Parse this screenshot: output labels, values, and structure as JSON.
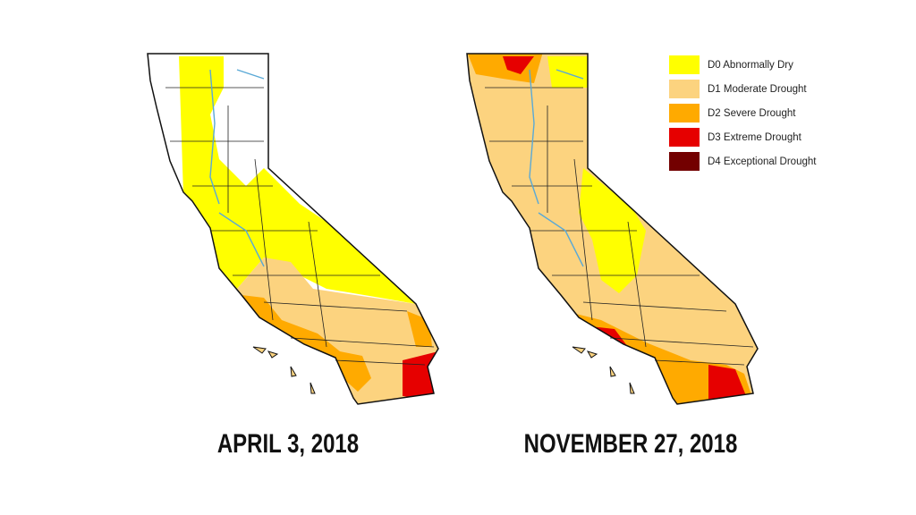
{
  "maps": [
    {
      "caption": "APRIL 3, 2018"
    },
    {
      "caption": "NOVEMBER 27, 2018"
    }
  ],
  "legend": [
    {
      "label": "D0 Abnormally Dry",
      "color": "#ffff00"
    },
    {
      "label": "D1 Moderate Drought",
      "color": "#fcd37f"
    },
    {
      "label": "D2 Severe Drought",
      "color": "#ffaa00"
    },
    {
      "label": "D3 Extreme Drought",
      "color": "#e60000"
    },
    {
      "label": "D4 Exceptional Drought",
      "color": "#730000"
    }
  ]
}
